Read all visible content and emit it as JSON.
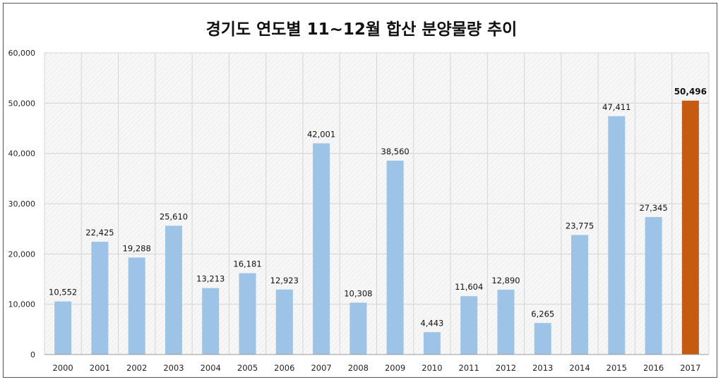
{
  "chart_data": {
    "type": "bar",
    "title": "경기도 연도별 11~12월 합산 분양물량 추이",
    "xlabel": "",
    "ylabel": "",
    "categories": [
      "2000",
      "2001",
      "2002",
      "2003",
      "2004",
      "2005",
      "2006",
      "2007",
      "2008",
      "2009",
      "2010",
      "2011",
      "2012",
      "2013",
      "2014",
      "2015",
      "2016",
      "2017"
    ],
    "values": [
      10552,
      22425,
      19288,
      25610,
      13213,
      16181,
      12923,
      42001,
      10308,
      38560,
      4443,
      11604,
      12890,
      6265,
      23775,
      47411,
      27345,
      50496
    ],
    "value_labels": [
      "10,552",
      "22,425",
      "19,288",
      "25,610",
      "13,213",
      "16,181",
      "12,923",
      "42,001",
      "10,308",
      "38,560",
      "4,443",
      "11,604",
      "12,890",
      "6,265",
      "23,775",
      "47,411",
      "27,345",
      "50,496"
    ],
    "ylim": [
      0,
      60000
    ],
    "yticks": [
      0,
      10000,
      20000,
      30000,
      40000,
      50000,
      60000
    ],
    "ytick_labels": [
      "0",
      "10,000",
      "20,000",
      "30,000",
      "40,000",
      "50,000",
      "60,000"
    ],
    "grid": true,
    "legend": "none",
    "colors": {
      "bar": "#9dc3e6",
      "highlight_bar": "#c55a11",
      "highlight_index": 17
    }
  }
}
